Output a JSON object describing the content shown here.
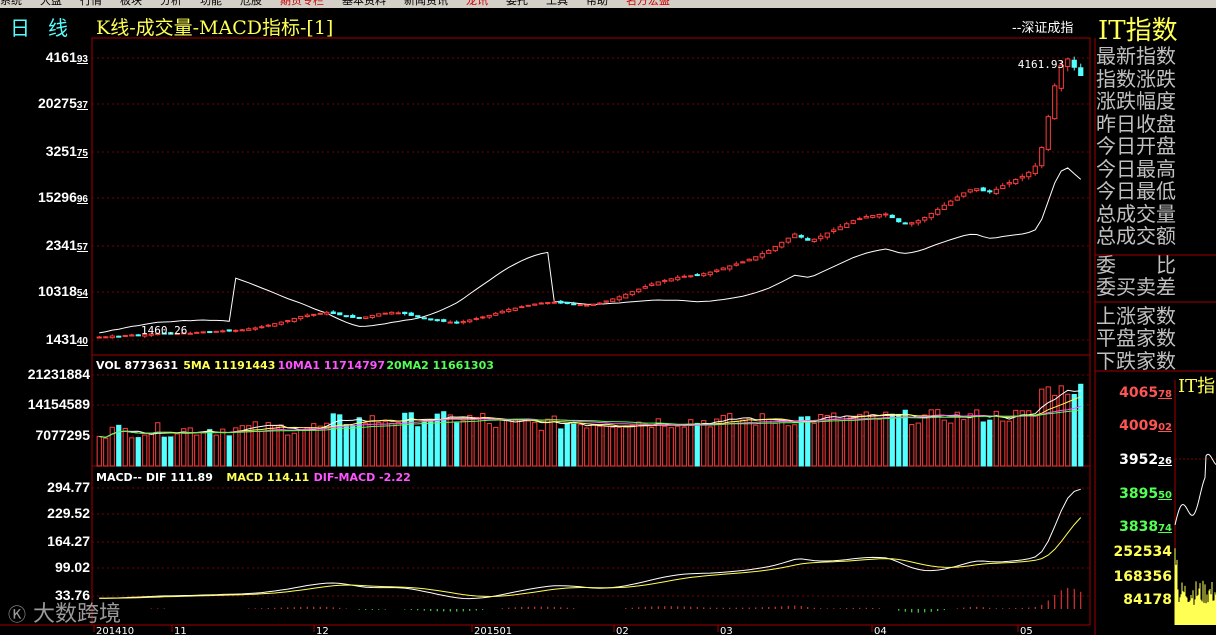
{
  "menubar": [
    {
      "label": "系统",
      "red": false
    },
    {
      "label": "大盘",
      "red": false
    },
    {
      "label": "行情",
      "red": false
    },
    {
      "label": "板块",
      "red": false
    },
    {
      "label": "分析",
      "red": false
    },
    {
      "label": "功能",
      "red": false
    },
    {
      "label": "危股",
      "red": false
    },
    {
      "label": "期货专栏",
      "red": true
    },
    {
      "label": "基本资料",
      "red": false
    },
    {
      "label": "新闻资讯",
      "red": false
    },
    {
      "label": "龙讯",
      "red": true
    },
    {
      "label": "委托",
      "red": false
    },
    {
      "label": "工具",
      "red": false
    },
    {
      "label": "帮助",
      "red": false
    },
    {
      "label": "名方宏盛",
      "red": true
    }
  ],
  "header": {
    "period": "日线",
    "title": "K线-成交量-MACD指标-[1]",
    "index_name": "--深证成指",
    "code": "IT指数"
  },
  "price_axis": [
    {
      "int": "4161",
      "dec": "93"
    },
    {
      "int": "20275",
      "dec": "37"
    },
    {
      "int": "3251",
      "dec": "75"
    },
    {
      "int": "15296",
      "dec": "96"
    },
    {
      "int": "2341",
      "dec": "57"
    },
    {
      "int": "10318",
      "dec": "54"
    },
    {
      "int": "1431",
      "dec": "40"
    }
  ],
  "price_annotations": {
    "high": "4161.93",
    "low": "1460.26"
  },
  "vol_axis": [
    "21231884",
    "14154589",
    "7077295"
  ],
  "macd_axis": [
    "294.77",
    "229.52",
    "164.27",
    "99.02",
    "33.76"
  ],
  "vol_legend": [
    {
      "text": "VOL 8773631",
      "color": "#ffffff"
    },
    {
      "text": "5MA 11191443",
      "color": "#ffff54"
    },
    {
      "text": "10MA1 11714797",
      "color": "#ff54ff"
    },
    {
      "text": "20MA2 11661303",
      "color": "#54ff54"
    }
  ],
  "macd_legend": [
    {
      "text": "MACD-- DIF 111.89",
      "color": "#ffffff"
    },
    {
      "text": "MACD 114.11",
      "color": "#ffff54"
    },
    {
      "text": "DIF-MACD -2.22",
      "color": "#ff54ff"
    }
  ],
  "date_axis": [
    "201410",
    "11",
    "12",
    "201501",
    "02",
    "03",
    "04",
    "05"
  ],
  "right_panel": {
    "fields_a": [
      "最新指数",
      "指数涨跌",
      "涨跌幅度",
      "昨日收盘",
      "今日开盘",
      "今日最高",
      "今日最低",
      "总成交量",
      "总成交额"
    ],
    "fields_b": [
      "委　　比",
      "委买卖差"
    ],
    "fields_c": [
      "上涨家数",
      "平盘家数",
      "下跌家数"
    ],
    "mini_title": "IT指",
    "mini_price": [
      {
        "int": "4065",
        "dec": "78",
        "color": "#ff5454"
      },
      {
        "int": "4009",
        "dec": "02",
        "color": "#ff5454"
      },
      {
        "int": "3952",
        "dec": "26",
        "color": "#ffffff"
      },
      {
        "int": "3895",
        "dec": "50",
        "color": "#54ff54"
      },
      {
        "int": "3838",
        "dec": "74",
        "color": "#54ff54"
      }
    ],
    "mini_vol": [
      "252534",
      "168356",
      "84178"
    ]
  },
  "watermark": "大数跨境",
  "colors": {
    "up": "#ff3c3c",
    "down": "#54ffff",
    "grid": "#7a0000",
    "border": "#a00000",
    "dif": "#ffffff",
    "mavg": "#ffff54",
    "ma10": "#ff54ff",
    "ma20": "#54ff54"
  },
  "chart_data": {
    "type": "candlestick",
    "note_series": "daily index",
    "close": [
      1460,
      1462,
      1470,
      1468,
      1475,
      1480,
      1478,
      1485,
      1490,
      1495,
      1492,
      1488,
      1494,
      1500,
      1496,
      1505,
      1510,
      1508,
      1515,
      1520,
      1518,
      1525,
      1530,
      1540,
      1548,
      1560,
      1575,
      1590,
      1605,
      1620,
      1640,
      1660,
      1672,
      1680,
      1690,
      1700,
      1688,
      1676,
      1662,
      1650,
      1640,
      1655,
      1670,
      1685,
      1692,
      1700,
      1695,
      1688,
      1670,
      1655,
      1640,
      1630,
      1620,
      1612,
      1605,
      1600,
      1610,
      1625,
      1640,
      1655,
      1670,
      1690,
      1710,
      1728,
      1740,
      1755,
      1768,
      1780,
      1790,
      1795,
      1798,
      1790,
      1785,
      1780,
      1775,
      1770,
      1778,
      1790,
      1810,
      1830,
      1850,
      1875,
      1900,
      1925,
      1950,
      1975,
      1995,
      2010,
      2025,
      2040,
      2050,
      2055,
      2060,
      2075,
      2090,
      2110,
      2130,
      2150,
      2170,
      2190,
      2215,
      2240,
      2270,
      2300,
      2340,
      2380,
      2420,
      2460,
      2430,
      2400,
      2410,
      2440,
      2470,
      2500,
      2530,
      2560,
      2590,
      2610,
      2630,
      2640,
      2650,
      2655,
      2620,
      2580,
      2560,
      2570,
      2590,
      2620,
      2660,
      2700,
      2740,
      2780,
      2820,
      2860,
      2890,
      2900,
      2880,
      2870,
      2895,
      2930,
      2960,
      2990,
      3020,
      3060,
      3120,
      3300,
      3600,
      3900,
      4100,
      4161,
      4080,
      4000
    ]
  }
}
